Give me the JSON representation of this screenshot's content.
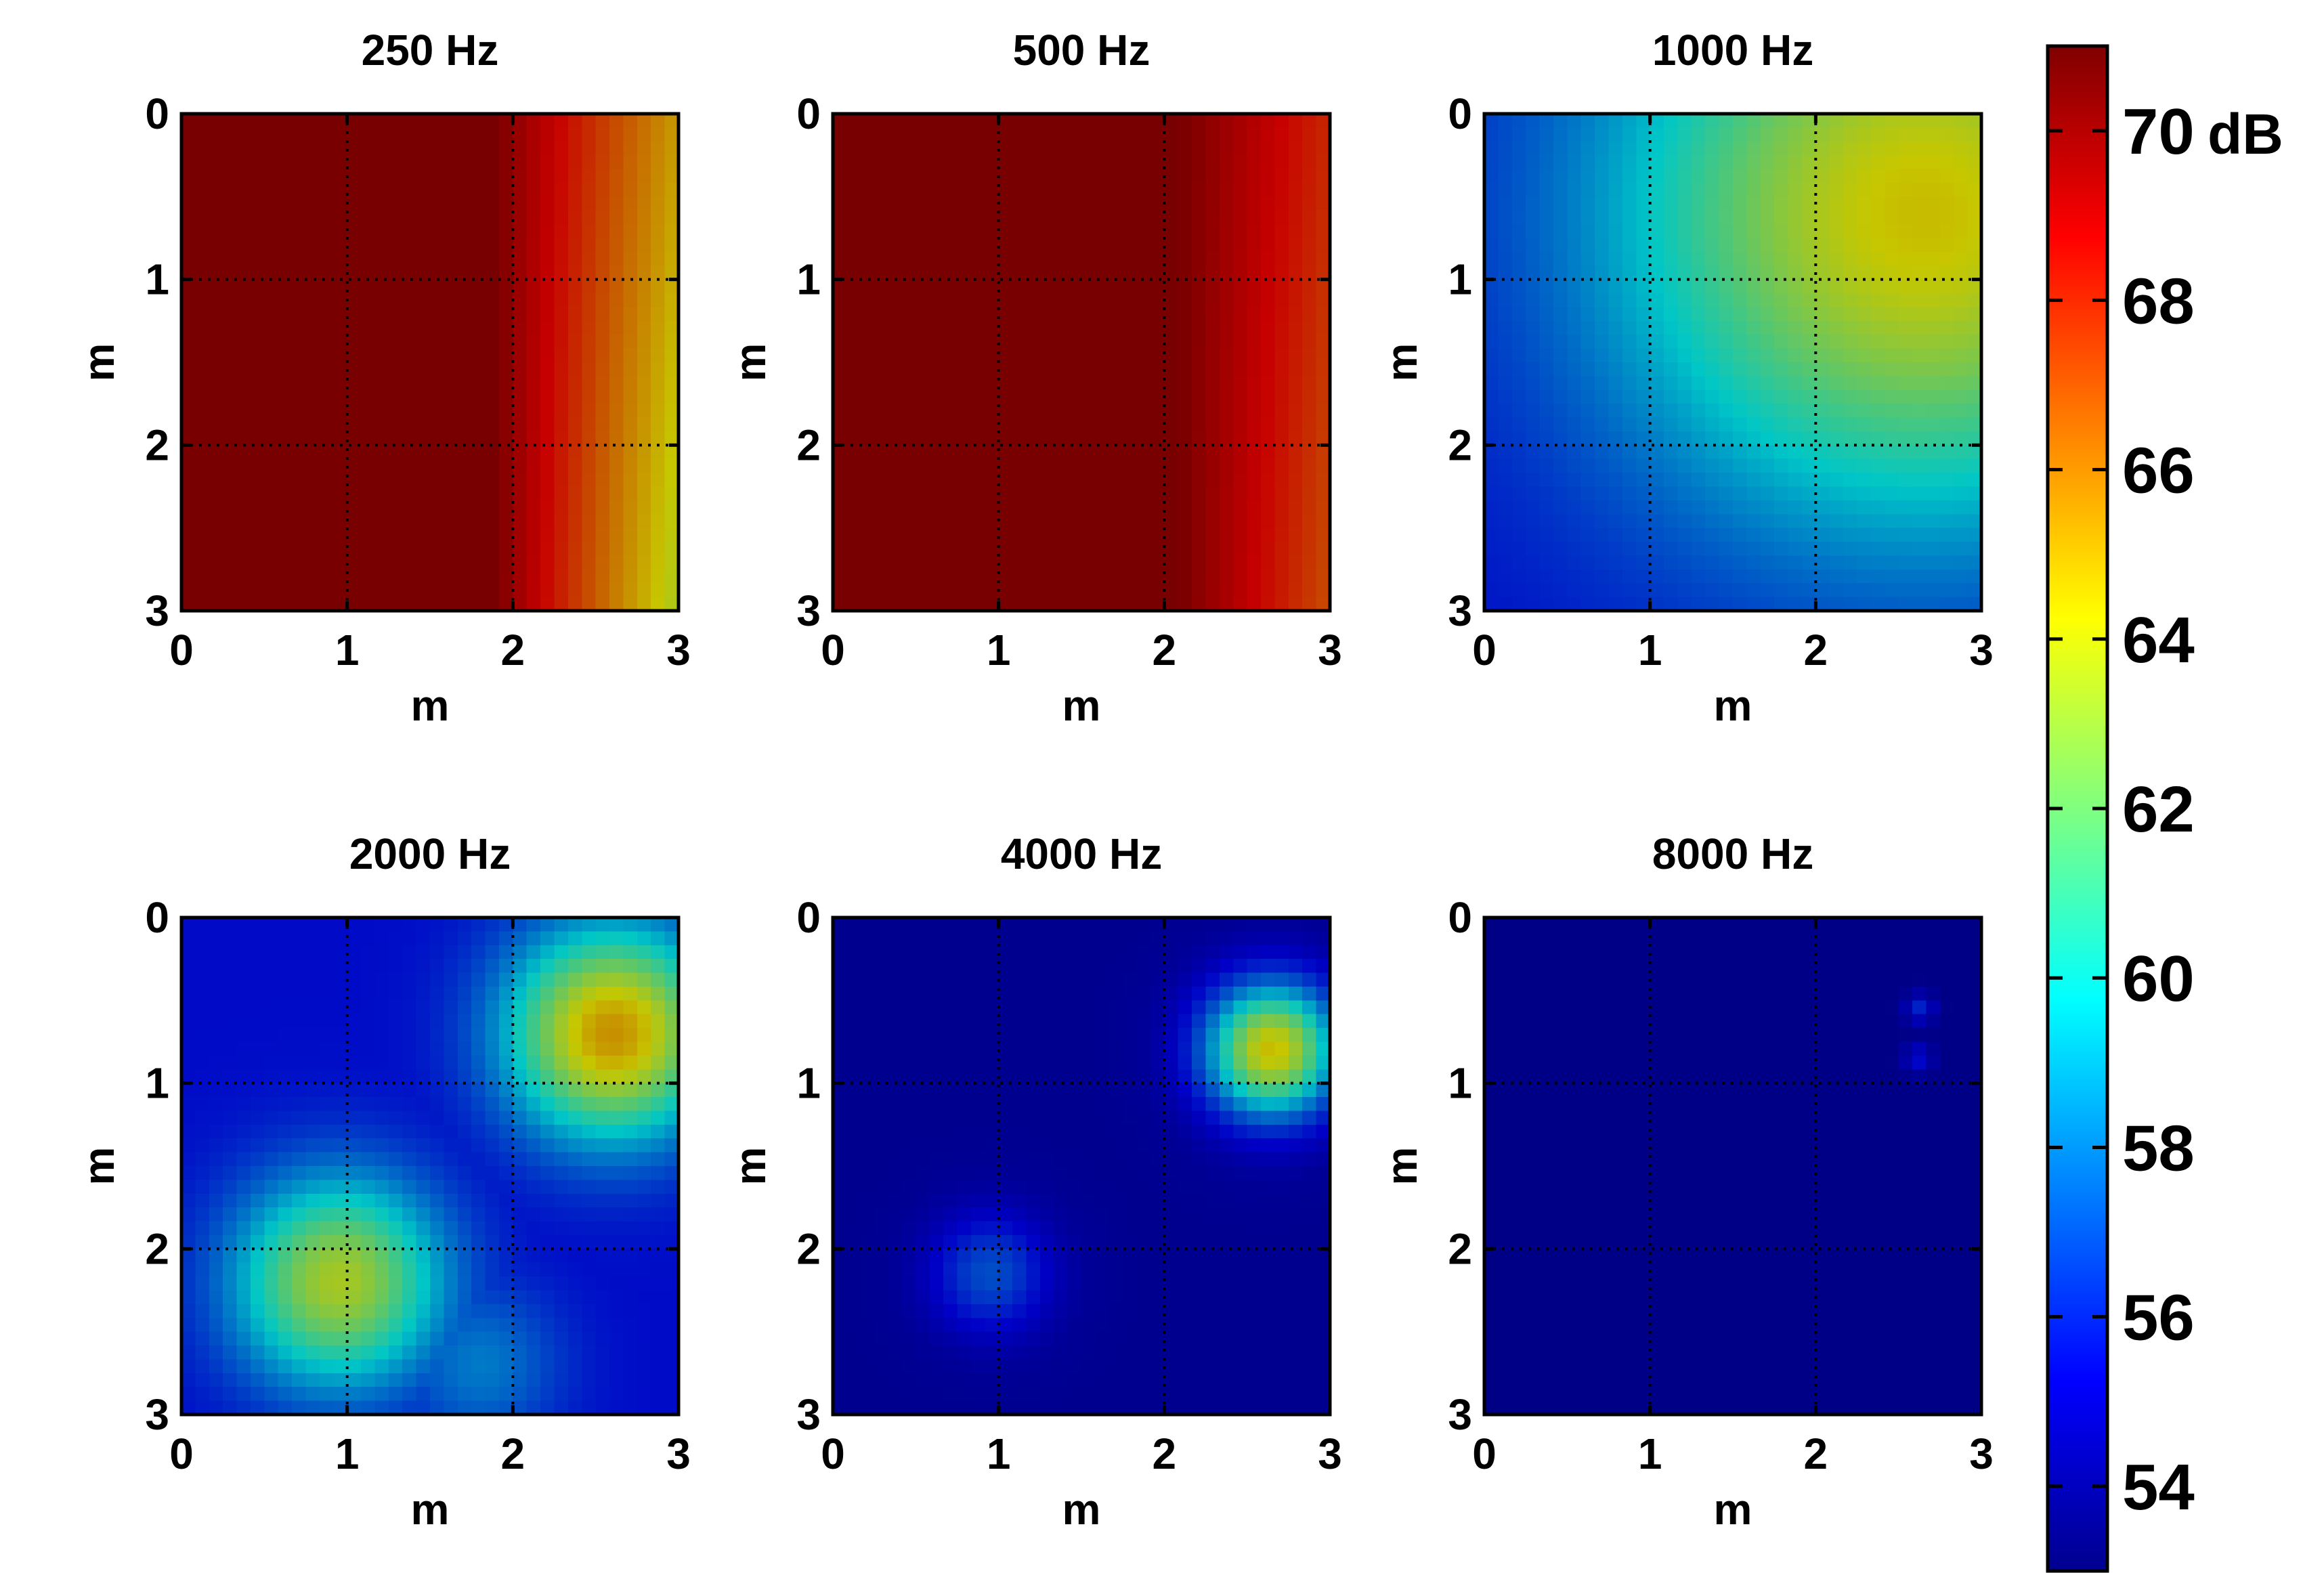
{
  "chart_data": {
    "type": "heatmap",
    "colormap": "jet",
    "color_range": [
      53,
      71
    ],
    "colorbar": {
      "unit": "dB",
      "ticks": [
        54,
        56,
        58,
        60,
        62,
        64,
        66,
        68,
        70
      ]
    },
    "panels": [
      {
        "title": "250 Hz",
        "xlabel": "m",
        "ylabel": "m",
        "xlim": [
          0,
          3
        ],
        "ylim": [
          0,
          3
        ],
        "xticks": [
          "0",
          "1",
          "2",
          "3"
        ],
        "yticks": [
          "0",
          "1",
          "2",
          "3"
        ],
        "grid": true,
        "field": {
          "base": 70.5,
          "gradient": {
            "x0": 1.9,
            "x1": 3.0,
            "low": 63.5
          },
          "hotspots": []
        }
      },
      {
        "title": "500 Hz",
        "xlabel": "m",
        "ylabel": "m",
        "xlim": [
          0,
          3
        ],
        "ylim": [
          0,
          3
        ],
        "xticks": [
          "0",
          "1",
          "2",
          "3"
        ],
        "yticks": [
          "0",
          "1",
          "2",
          "3"
        ],
        "grid": true,
        "field": {
          "base": 70.5,
          "gradient": {
            "x0": 2.1,
            "x1": 3.0,
            "low": 67.0
          },
          "hotspots": []
        }
      },
      {
        "title": "1000 Hz",
        "xlabel": "m",
        "ylabel": "m",
        "xlim": [
          0,
          3
        ],
        "ylim": [
          0,
          3
        ],
        "xticks": [
          "0",
          "1",
          "2",
          "3"
        ],
        "yticks": [
          "0",
          "1",
          "2",
          "3"
        ],
        "grid": true,
        "field": {
          "base": 55.5,
          "hotspots": [
            {
              "x": 2.65,
              "y": 0.6,
              "peak": 64.5,
              "sigma": 1.35
            }
          ]
        }
      },
      {
        "title": "2000 Hz",
        "xlabel": "m",
        "ylabel": "m",
        "xlim": [
          0,
          3
        ],
        "ylim": [
          0,
          3
        ],
        "xticks": [
          "0",
          "1",
          "2",
          "3"
        ],
        "yticks": [
          "0",
          "1",
          "2",
          "3"
        ],
        "grid": true,
        "field": {
          "base": 55.5,
          "hotspots": [
            {
              "x": 2.6,
              "y": 0.7,
              "peak": 65.5,
              "sigma": 0.45
            },
            {
              "x": 0.95,
              "y": 2.2,
              "peak": 63.5,
              "sigma": 0.45
            },
            {
              "x": 1.8,
              "y": 2.7,
              "peak": 58.0,
              "sigma": 0.35
            }
          ]
        }
      },
      {
        "title": "4000 Hz",
        "xlabel": "m",
        "ylabel": "m",
        "xlim": [
          0,
          3
        ],
        "ylim": [
          0,
          3
        ],
        "xticks": [
          "0",
          "1",
          "2",
          "3"
        ],
        "yticks": [
          "0",
          "1",
          "2",
          "3"
        ],
        "grid": true,
        "field": {
          "base": 54.0,
          "hotspots": [
            {
              "x": 2.65,
              "y": 0.8,
              "peak": 64.5,
              "sigma": 0.28
            },
            {
              "x": 0.95,
              "y": 2.15,
              "peak": 57.0,
              "sigma": 0.25
            }
          ]
        }
      },
      {
        "title": "8000 Hz",
        "xlabel": "m",
        "ylabel": "m",
        "xlim": [
          0,
          3
        ],
        "ylim": [
          0,
          3
        ],
        "xticks": [
          "0",
          "1",
          "2",
          "3"
        ],
        "yticks": [
          "0",
          "1",
          "2",
          "3"
        ],
        "grid": true,
        "field": {
          "base": 53.8,
          "hotspots": [
            {
              "x": 2.63,
              "y": 0.55,
              "peak": 56.0,
              "sigma": 0.06
            },
            {
              "x": 2.62,
              "y": 0.85,
              "peak": 55.5,
              "sigma": 0.06
            }
          ]
        }
      }
    ]
  }
}
